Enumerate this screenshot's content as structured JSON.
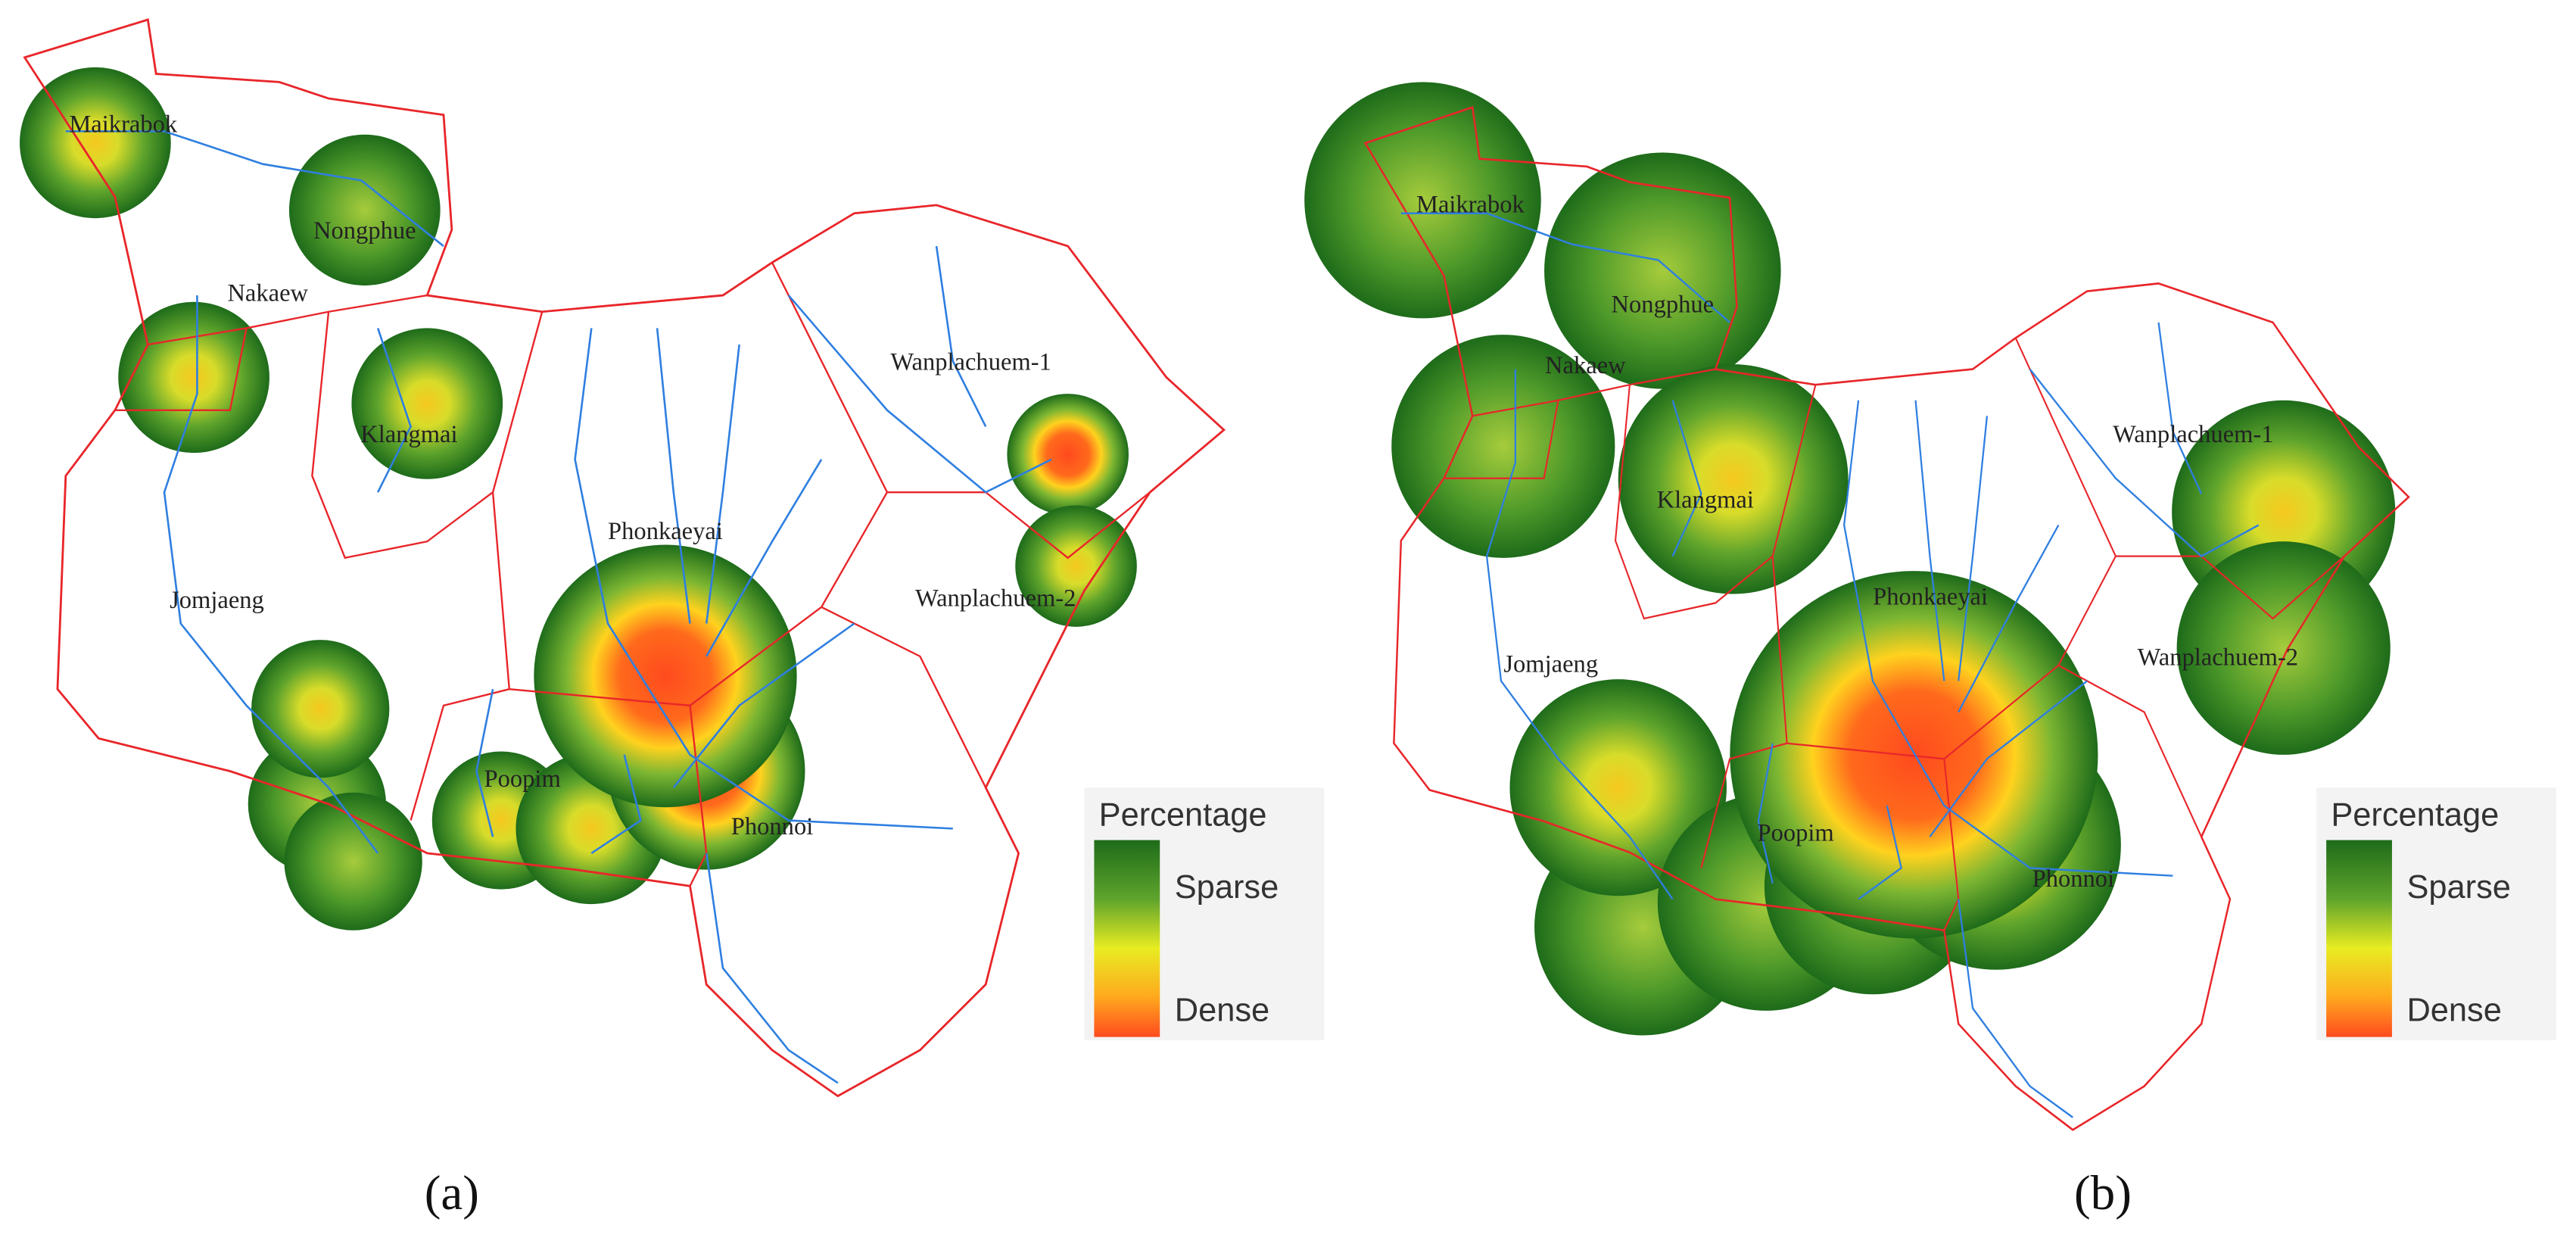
{
  "panels": [
    {
      "label": "(a)",
      "places": [
        "Maikrabok",
        "Nongphue",
        "Nakaew",
        "Klangmai",
        "Wanplachuem-1",
        "Phonkaeyai",
        "Wanplachuem-2",
        "Jomjaeng",
        "Poopim",
        "Phonnoi"
      ],
      "legend": {
        "title": "Percentage",
        "top": "Sparse",
        "bottom": "Dense"
      }
    },
    {
      "label": "(b)",
      "places": [
        "Maikrabok",
        "Nongphue",
        "Nakaew",
        "Klangmai",
        "Wanplachuem-1",
        "Phonkaeyai",
        "Jomjaeng",
        "Wanplachuem-2",
        "Poopim",
        "Phonnoi"
      ],
      "legend": {
        "title": "Percentage",
        "top": "Sparse",
        "bottom": "Dense"
      }
    }
  ]
}
